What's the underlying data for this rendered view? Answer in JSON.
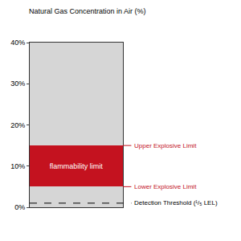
{
  "chart_data": {
    "type": "range",
    "title": "Natural Gas Concentration in Air (%)",
    "ylim": [
      0,
      40
    ],
    "yticks": [
      {
        "value": 0,
        "label": "0%"
      },
      {
        "value": 10,
        "label": "10%"
      },
      {
        "value": 20,
        "label": "20%"
      },
      {
        "value": 30,
        "label": "30%"
      },
      {
        "value": 40,
        "label": "40%"
      }
    ],
    "grid": false,
    "tick_labels": "y",
    "color": "#d6d6d6",
    "bands": [
      {
        "name": "flammability limit",
        "from": 5,
        "to": 15,
        "color": "#c4121f"
      }
    ],
    "markers": [
      {
        "label": "Upper Explosive Limit",
        "value": 15,
        "color": "#c4121f",
        "line_style": "solid"
      },
      {
        "label": "Lower Explosive Limit",
        "value": 5,
        "color": "#c4121f",
        "line_style": "solid"
      },
      {
        "label": "Detection Threshold (¹/₅ LEL)",
        "value": 1,
        "color": "#000000",
        "line_style": "dashed"
      }
    ]
  }
}
